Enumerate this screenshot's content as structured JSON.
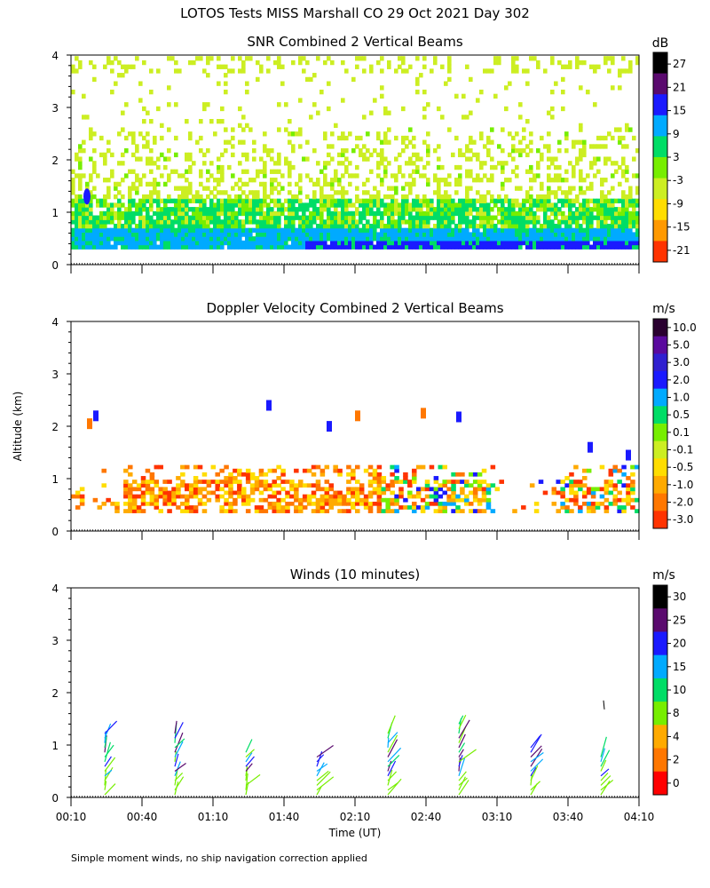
{
  "figure_title": "LOTOS Tests MISS Marshall CO  29 Oct 2021 Day 302",
  "y_axis_label": "Altitude (km)",
  "x_axis_label": "Time (UT)",
  "footnote": "Simple moment winds, no ship navigation correction applied",
  "colors": {
    "background": "#ffffff",
    "axis": "#000000"
  },
  "chart_data": [
    {
      "type": "heatmap",
      "title": "SNR Combined 2 Vertical Beams",
      "colorbar_unit": "dB",
      "colorbar_labels": [
        "27",
        "21",
        "15",
        "9",
        "3",
        "-3",
        "-9",
        "-15",
        "-21"
      ],
      "colorbar_colors": [
        "#000000",
        "#5a0a6e",
        "#1a1aff",
        "#00aaff",
        "#00dd66",
        "#77ee00",
        "#ccee22",
        "#ffdd00",
        "#ff9900",
        "#ff3300"
      ],
      "xlim": [
        0.1667,
        4.1667
      ],
      "ylim": [
        0,
        4
      ],
      "y_ticks": [
        0,
        1,
        2,
        3,
        4
      ],
      "y_tick_labels": [
        "0",
        "1",
        "2",
        "3",
        "4"
      ],
      "grid": false
    },
    {
      "type": "heatmap",
      "title": "Doppler Velocity Combined 2 Vertical Beams",
      "colorbar_unit": "m/s",
      "colorbar_labels": [
        "10.0",
        "5.0",
        "3.0",
        "2.0",
        "1.0",
        "0.5",
        "0.1",
        "-0.1",
        "-0.5",
        "-1.0",
        "-2.0",
        "-3.0"
      ],
      "colorbar_colors": [
        "#2a0030",
        "#5a0a9e",
        "#3020d0",
        "#1a1aff",
        "#00aaff",
        "#00dd66",
        "#77ee00",
        "#ccee22",
        "#ffdd00",
        "#ffaa00",
        "#ff7700",
        "#ff3300"
      ],
      "xlim": [
        0.1667,
        4.1667
      ],
      "ylim": [
        0,
        4
      ],
      "y_ticks": [
        0,
        1,
        2,
        3,
        4
      ],
      "y_tick_labels": [
        "0",
        "1",
        "2",
        "3",
        "4"
      ],
      "grid": false
    },
    {
      "type": "scatter",
      "title": "Winds (10 minutes)",
      "colorbar_unit": "m/s",
      "colorbar_labels": [
        "30",
        "25",
        "20",
        "15",
        "10",
        "8",
        "4",
        "2",
        "0"
      ],
      "colorbar_colors": [
        "#000000",
        "#5a0a6e",
        "#1a1aff",
        "#00aaff",
        "#00dd66",
        "#77ee00",
        "#ffaa00",
        "#ff7700",
        "#ff0000"
      ],
      "xlim": [
        0.1667,
        4.1667
      ],
      "ylim": [
        0,
        4
      ],
      "y_ticks": [
        0,
        1,
        2,
        3,
        4
      ],
      "y_tick_labels": [
        "0",
        "1",
        "2",
        "3",
        "4"
      ],
      "x_tick_labels": [
        "00:10",
        "00:40",
        "01:10",
        "01:40",
        "02:10",
        "02:40",
        "03:10",
        "03:40",
        "04:10"
      ],
      "profile_times": [
        "00:25",
        "00:55",
        "01:25",
        "01:55",
        "02:25",
        "02:55",
        "03:25",
        "03:55"
      ],
      "grid": false
    }
  ]
}
